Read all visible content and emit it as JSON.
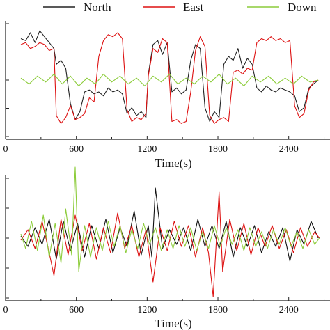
{
  "chart_data": [
    {
      "type": "line",
      "title": "",
      "xlabel": "Time(s)",
      "ylabel": "",
      "xlim": [
        0,
        2750
      ],
      "ylim": [
        -3,
        3
      ],
      "x_ticks": [
        0,
        600,
        1200,
        1800,
        2400
      ],
      "x_tick_labels": [
        "0",
        "600",
        "1200",
        "1800",
        "2400"
      ],
      "grid": false,
      "legend": "top",
      "series": [
        {
          "name": "North",
          "color": "#222222",
          "x": [
            130,
            170,
            210,
            250,
            290,
            330,
            370,
            410,
            430,
            470,
            510,
            550,
            590,
            630,
            670,
            710,
            750,
            790,
            830,
            870,
            910,
            950,
            990,
            1030,
            1070,
            1110,
            1150,
            1190,
            1210,
            1250,
            1290,
            1330,
            1370,
            1410,
            1450,
            1490,
            1530,
            1570,
            1610,
            1650,
            1690,
            1730,
            1770,
            1810,
            1850,
            1890,
            1930,
            1970,
            2010,
            2050,
            2090,
            2130,
            2170,
            2210,
            2250,
            2290,
            2330,
            2370,
            2410,
            2450,
            2490,
            2530,
            2570,
            2610,
            2650
          ],
          "y": [
            2.1,
            2.0,
            2.4,
            1.9,
            2.5,
            2.2,
            1.9,
            1.6,
            0.8,
            1.0,
            0.6,
            -1.2,
            -2.0,
            -1.6,
            -0.6,
            -0.5,
            -0.7,
            -0.6,
            -0.8,
            -0.4,
            -0.6,
            -0.5,
            -0.7,
            -1.7,
            -1.4,
            -1.8,
            -1.6,
            -1.9,
            0.3,
            1.8,
            2.0,
            1.3,
            1.9,
            -0.6,
            -0.4,
            -0.7,
            -0.5,
            1.0,
            1.8,
            1.6,
            -1.4,
            -2.1,
            -1.6,
            -1.9,
            0.8,
            1.2,
            1.0,
            1.6,
            0.6,
            1.1,
            0.8,
            -0.4,
            -0.6,
            -0.3,
            -0.5,
            -0.6,
            -0.4,
            -0.5,
            -0.6,
            -0.8,
            -1.6,
            -1.4,
            -0.4,
            -0.2,
            0.0
          ]
        },
        {
          "name": "East",
          "color": "#dd1111",
          "x": [
            130,
            170,
            210,
            250,
            290,
            330,
            370,
            410,
            430,
            470,
            510,
            550,
            590,
            630,
            670,
            710,
            750,
            790,
            830,
            870,
            910,
            950,
            990,
            1030,
            1070,
            1110,
            1150,
            1190,
            1210,
            1250,
            1290,
            1330,
            1370,
            1410,
            1450,
            1490,
            1530,
            1570,
            1610,
            1650,
            1690,
            1730,
            1770,
            1810,
            1850,
            1890,
            1930,
            1970,
            2010,
            2050,
            2090,
            2130,
            2170,
            2210,
            2250,
            2290,
            2330,
            2370,
            2410,
            2450,
            2490,
            2530,
            2570,
            2610,
            2650
          ],
          "y": [
            1.8,
            1.9,
            1.6,
            1.7,
            1.9,
            1.8,
            1.5,
            1.6,
            -1.8,
            -2.2,
            -1.9,
            -1.3,
            -2.0,
            -1.9,
            -1.7,
            -0.9,
            -1.1,
            1.2,
            2.0,
            2.3,
            2.2,
            2.4,
            2.1,
            -1.5,
            -2.1,
            -1.9,
            -2.0,
            -1.7,
            0.2,
            1.6,
            1.4,
            2.1,
            1.9,
            -2.1,
            -2.0,
            -2.2,
            -2.1,
            -0.6,
            1.5,
            2.2,
            1.7,
            -1.8,
            -2.2,
            -2.0,
            -1.9,
            -2.1,
            0.4,
            0.5,
            0.3,
            0.6,
            0.5,
            1.9,
            2.1,
            2.0,
            2.2,
            2.0,
            2.1,
            1.9,
            2.0,
            -1.3,
            -1.9,
            -1.7,
            -0.5,
            -0.1,
            0.0
          ]
        },
        {
          "name": "Down",
          "color": "#8ccc3a",
          "x": [
            130,
            200,
            270,
            340,
            410,
            480,
            550,
            620,
            690,
            760,
            830,
            900,
            970,
            1040,
            1110,
            1180,
            1250,
            1320,
            1390,
            1460,
            1530,
            1600,
            1670,
            1740,
            1810,
            1880,
            1950,
            2020,
            2090,
            2160,
            2230,
            2300,
            2370,
            2440,
            2510,
            2580,
            2650
          ],
          "y": [
            0.1,
            -0.2,
            0.2,
            -0.1,
            0.3,
            -0.2,
            0.2,
            -0.3,
            0.1,
            -0.2,
            0.3,
            -0.1,
            0.2,
            -0.2,
            0.1,
            -0.3,
            0.2,
            -0.1,
            0.3,
            -0.2,
            0.1,
            -0.2,
            0.2,
            -0.1,
            0.3,
            -0.2,
            0.1,
            -0.3,
            0.2,
            -0.1,
            0.2,
            -0.2,
            0.1,
            -0.2,
            0.2,
            -0.1,
            0.0
          ]
        }
      ]
    },
    {
      "type": "line",
      "title": "",
      "xlabel": "Time(s)",
      "ylabel": "",
      "xlim": [
        0,
        2750
      ],
      "ylim": [
        -3,
        3
      ],
      "x_ticks": [
        0,
        600,
        1200,
        1800,
        2400
      ],
      "x_tick_labels": [
        "0",
        "600",
        "1200",
        "1800",
        "2400"
      ],
      "grid": false,
      "series": [
        {
          "name": "North",
          "color": "#111111",
          "x": [
            130,
            190,
            250,
            310,
            370,
            430,
            490,
            550,
            610,
            670,
            730,
            790,
            850,
            910,
            970,
            1030,
            1090,
            1150,
            1210,
            1240,
            1270,
            1330,
            1390,
            1450,
            1510,
            1570,
            1630,
            1690,
            1750,
            1810,
            1870,
            1930,
            1990,
            2050,
            2110,
            2170,
            2230,
            2290,
            2350,
            2410,
            2470,
            2530,
            2590,
            2650
          ],
          "y": [
            0.1,
            -0.4,
            0.5,
            -0.3,
            0.9,
            -1.0,
            0.8,
            -0.6,
            0.7,
            -0.9,
            0.6,
            -0.5,
            0.9,
            -0.7,
            0.5,
            -0.4,
            1.3,
            -0.8,
            0.6,
            -0.9,
            2.4,
            -0.5,
            0.4,
            -0.3,
            0.5,
            -0.6,
            0.9,
            -0.4,
            0.6,
            -0.5,
            0.8,
            -0.9,
            0.5,
            -0.4,
            0.6,
            -0.7,
            0.3,
            -0.4,
            0.5,
            -1.1,
            0.4,
            -0.3,
            0.8,
            0.0
          ]
        },
        {
          "name": "East",
          "color": "#dd1111",
          "x": [
            130,
            190,
            250,
            310,
            370,
            410,
            470,
            530,
            590,
            650,
            710,
            770,
            830,
            890,
            950,
            1010,
            1070,
            1130,
            1190,
            1250,
            1310,
            1370,
            1430,
            1490,
            1550,
            1610,
            1670,
            1720,
            1760,
            1810,
            1840,
            1900,
            1960,
            2020,
            2080,
            2140,
            2200,
            2260,
            2320,
            2380,
            2440,
            2500,
            2560,
            2620,
            2660
          ],
          "y": [
            -0.1,
            0.4,
            -0.5,
            0.8,
            -0.7,
            -1.8,
            0.9,
            -0.8,
            1.1,
            -0.6,
            0.7,
            -1.0,
            0.5,
            -0.7,
            1.2,
            -0.5,
            0.6,
            -0.9,
            0.4,
            -2.1,
            0.5,
            -0.6,
            0.8,
            -0.4,
            0.6,
            -0.9,
            0.5,
            -0.7,
            -2.8,
            2.2,
            -1.6,
            0.9,
            -0.6,
            0.7,
            -0.8,
            0.5,
            -0.4,
            0.6,
            -0.5,
            0.4,
            -0.7,
            0.5,
            -0.4,
            0.3,
            0.0
          ]
        },
        {
          "name": "Down",
          "color": "#8ccc3a",
          "x": [
            130,
            170,
            220,
            270,
            320,
            370,
            420,
            470,
            510,
            560,
            590,
            620,
            670,
            720,
            770,
            820,
            870,
            920,
            970,
            1020,
            1070,
            1120,
            1170,
            1220,
            1270,
            1320,
            1370,
            1420,
            1470,
            1520,
            1570,
            1620,
            1670,
            1720,
            1770,
            1820,
            1870,
            1920,
            1970,
            2020,
            2070,
            2120,
            2170,
            2220,
            2270,
            2320,
            2370,
            2420,
            2470,
            2520,
            2570,
            2620,
            2660
          ],
          "y": [
            0.2,
            -0.5,
            0.8,
            -0.6,
            1.1,
            -0.9,
            0.7,
            -1.2,
            1.4,
            -0.8,
            3.4,
            -1.6,
            0.6,
            -0.9,
            0.5,
            -0.6,
            0.8,
            -0.4,
            0.6,
            -0.7,
            0.4,
            -0.5,
            0.7,
            -0.3,
            0.5,
            -0.6,
            0.4,
            -0.5,
            0.6,
            -0.4,
            0.5,
            -0.6,
            0.3,
            -0.5,
            0.6,
            -0.4,
            0.5,
            -0.3,
            0.4,
            -0.6,
            0.5,
            -0.4,
            0.3,
            -0.5,
            0.4,
            -0.3,
            0.5,
            -0.4,
            0.3,
            -0.5,
            0.4,
            -0.3,
            0.0
          ]
        }
      ]
    }
  ]
}
